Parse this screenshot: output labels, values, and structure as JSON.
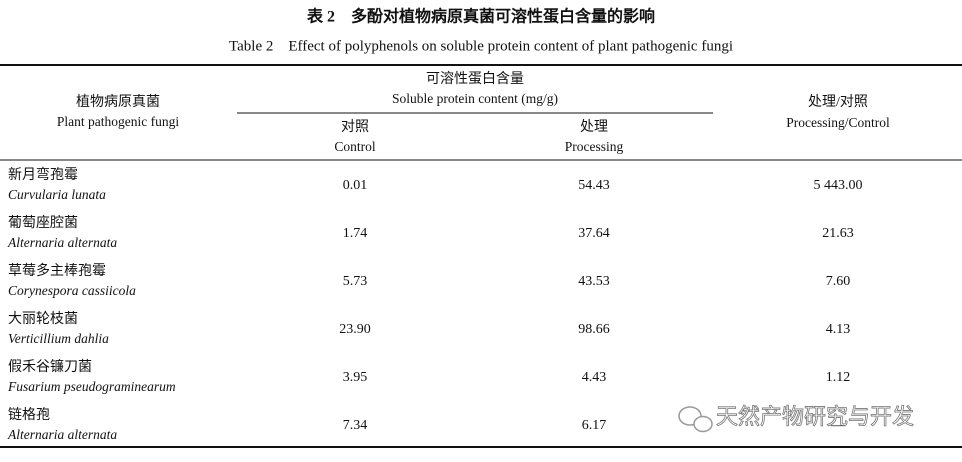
{
  "header": {
    "title": "表 2　多酚对植物病原真菌可溶性蛋白含量的影响",
    "subtitle": "Table 2　Effect of polyphenols on soluble protein content of plant pathogenic fungi"
  },
  "table": {
    "columns": {
      "fungi": {
        "zh": "植物病原真菌",
        "en": "Plant pathogenic fungi"
      },
      "soluble_protein": {
        "zh": "可溶性蛋白含量",
        "en": "Soluble protein content (mg/g)"
      },
      "control": {
        "zh": "对照",
        "en": "Control"
      },
      "processing": {
        "zh": "处理",
        "en": "Processing"
      },
      "ratio": {
        "zh": "处理/对照",
        "en": "Processing/Control"
      }
    },
    "rows": [
      {
        "zh": "新月弯孢霉",
        "en": "Curvularia lunata",
        "control": "0.01",
        "processing": "54.43",
        "ratio": "5 443.00"
      },
      {
        "zh": "葡萄座腔菌",
        "en": "Alternaria alternata",
        "control": "1.74",
        "processing": "37.64",
        "ratio": "21.63"
      },
      {
        "zh": "草莓多主棒孢霉",
        "en": "Corynespora cassiicola",
        "control": "5.73",
        "processing": "43.53",
        "ratio": "7.60"
      },
      {
        "zh": "大丽轮枝菌",
        "en": "Verticillium dahlia",
        "control": "23.90",
        "processing": "98.66",
        "ratio": "4.13"
      },
      {
        "zh": "假禾谷镰刀菌",
        "en": "Fusarium pseudograminearum",
        "control": "3.95",
        "processing": "4.43",
        "ratio": "1.12"
      },
      {
        "zh": "链格孢",
        "en": "Alternaria alternata",
        "control": "7.34",
        "processing": "6.17",
        "ratio": "—"
      }
    ]
  },
  "watermark": "天然产物研究与开发"
}
